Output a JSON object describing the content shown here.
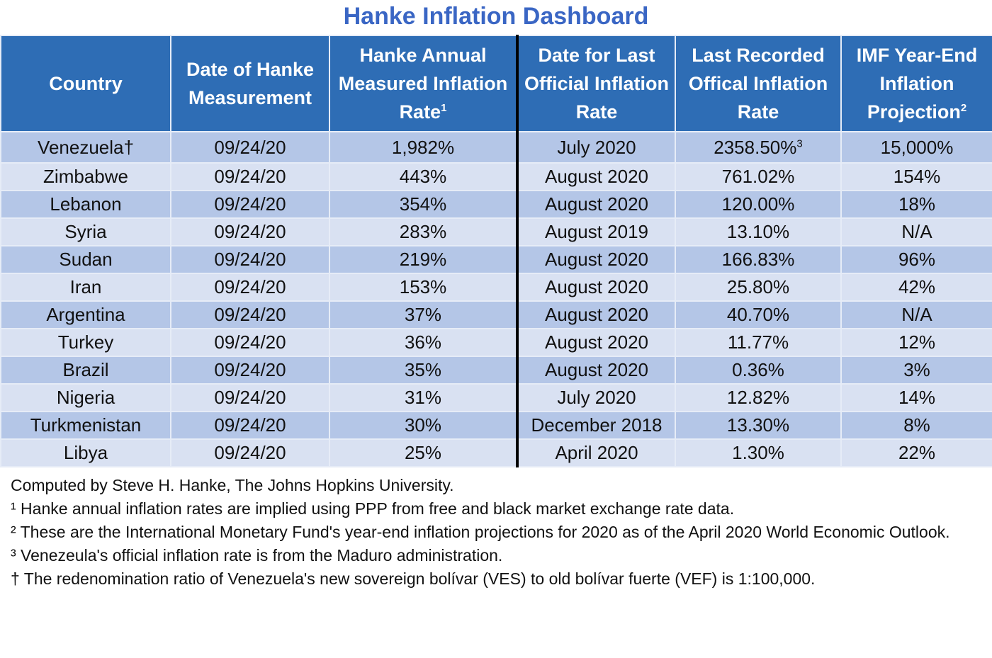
{
  "title": "Hanke Inflation Dashboard",
  "chart_data": {
    "type": "table",
    "title": "Hanke Inflation Dashboard",
    "columns": [
      {
        "label": "Country",
        "sup": ""
      },
      {
        "label": "Date of Hanke Measurement",
        "sup": ""
      },
      {
        "label": "Hanke Annual Measured Inflation Rate",
        "sup": "1"
      },
      {
        "label": "Date for Last Official Inflation Rate",
        "sup": ""
      },
      {
        "label": "Last Recorded Offical Inflation Rate",
        "sup": ""
      },
      {
        "label": "IMF Year-End Inflation Projection",
        "sup": "2"
      }
    ],
    "rows": [
      {
        "country": "Venezuela†",
        "hanke_date": "09/24/20",
        "hanke_rate": "1,982%",
        "official_date": "July 2020",
        "official_rate": "2358.50%",
        "official_sup": "3",
        "imf": "15,000%"
      },
      {
        "country": "Zimbabwe",
        "hanke_date": "09/24/20",
        "hanke_rate": "443%",
        "official_date": "August 2020",
        "official_rate": "761.02%",
        "official_sup": "",
        "imf": "154%"
      },
      {
        "country": "Lebanon",
        "hanke_date": "09/24/20",
        "hanke_rate": "354%",
        "official_date": "August 2020",
        "official_rate": "120.00%",
        "official_sup": "",
        "imf": "18%"
      },
      {
        "country": "Syria",
        "hanke_date": "09/24/20",
        "hanke_rate": "283%",
        "official_date": "August 2019",
        "official_rate": "13.10%",
        "official_sup": "",
        "imf": "N/A"
      },
      {
        "country": "Sudan",
        "hanke_date": "09/24/20",
        "hanke_rate": "219%",
        "official_date": "August 2020",
        "official_rate": "166.83%",
        "official_sup": "",
        "imf": "96%"
      },
      {
        "country": "Iran",
        "hanke_date": "09/24/20",
        "hanke_rate": "153%",
        "official_date": "August 2020",
        "official_rate": "25.80%",
        "official_sup": "",
        "imf": "42%"
      },
      {
        "country": "Argentina",
        "hanke_date": "09/24/20",
        "hanke_rate": "37%",
        "official_date": "August 2020",
        "official_rate": "40.70%",
        "official_sup": "",
        "imf": "N/A"
      },
      {
        "country": "Turkey",
        "hanke_date": "09/24/20",
        "hanke_rate": "36%",
        "official_date": "August 2020",
        "official_rate": "11.77%",
        "official_sup": "",
        "imf": "12%"
      },
      {
        "country": "Brazil",
        "hanke_date": "09/24/20",
        "hanke_rate": "35%",
        "official_date": "August 2020",
        "official_rate": "0.36%",
        "official_sup": "",
        "imf": "3%"
      },
      {
        "country": "Nigeria",
        "hanke_date": "09/24/20",
        "hanke_rate": "31%",
        "official_date": "July 2020",
        "official_rate": "12.82%",
        "official_sup": "",
        "imf": "14%"
      },
      {
        "country": "Turkmenistan",
        "hanke_date": "09/24/20",
        "hanke_rate": "30%",
        "official_date": "December 2018",
        "official_rate": "13.30%",
        "official_sup": "",
        "imf": "8%"
      },
      {
        "country": "Libya",
        "hanke_date": "09/24/20",
        "hanke_rate": "25%",
        "official_date": "April 2020",
        "official_rate": "1.30%",
        "official_sup": "",
        "imf": "22%"
      }
    ]
  },
  "notes": [
    "Computed by Steve H. Hanke, The Johns Hopkins University.",
    "¹ Hanke annual inflation rates are implied using PPP from free and black market exchange rate data.",
    "² These are the International Monetary Fund's year-end inflation projections for 2020 as of the April 2020 World Economic Outlook.",
    "³ Venezeula's official inflation rate is from the Maduro administration.",
    "† The redenomination ratio of Venezuela's new sovereign bolívar (VES) to old bolívar fuerte (VEF) is 1:100,000."
  ],
  "colors": {
    "header": "#2e6db5",
    "row_dark": "#b4c6e7",
    "row_light": "#d9e1f2",
    "title": "#3a66c4"
  }
}
